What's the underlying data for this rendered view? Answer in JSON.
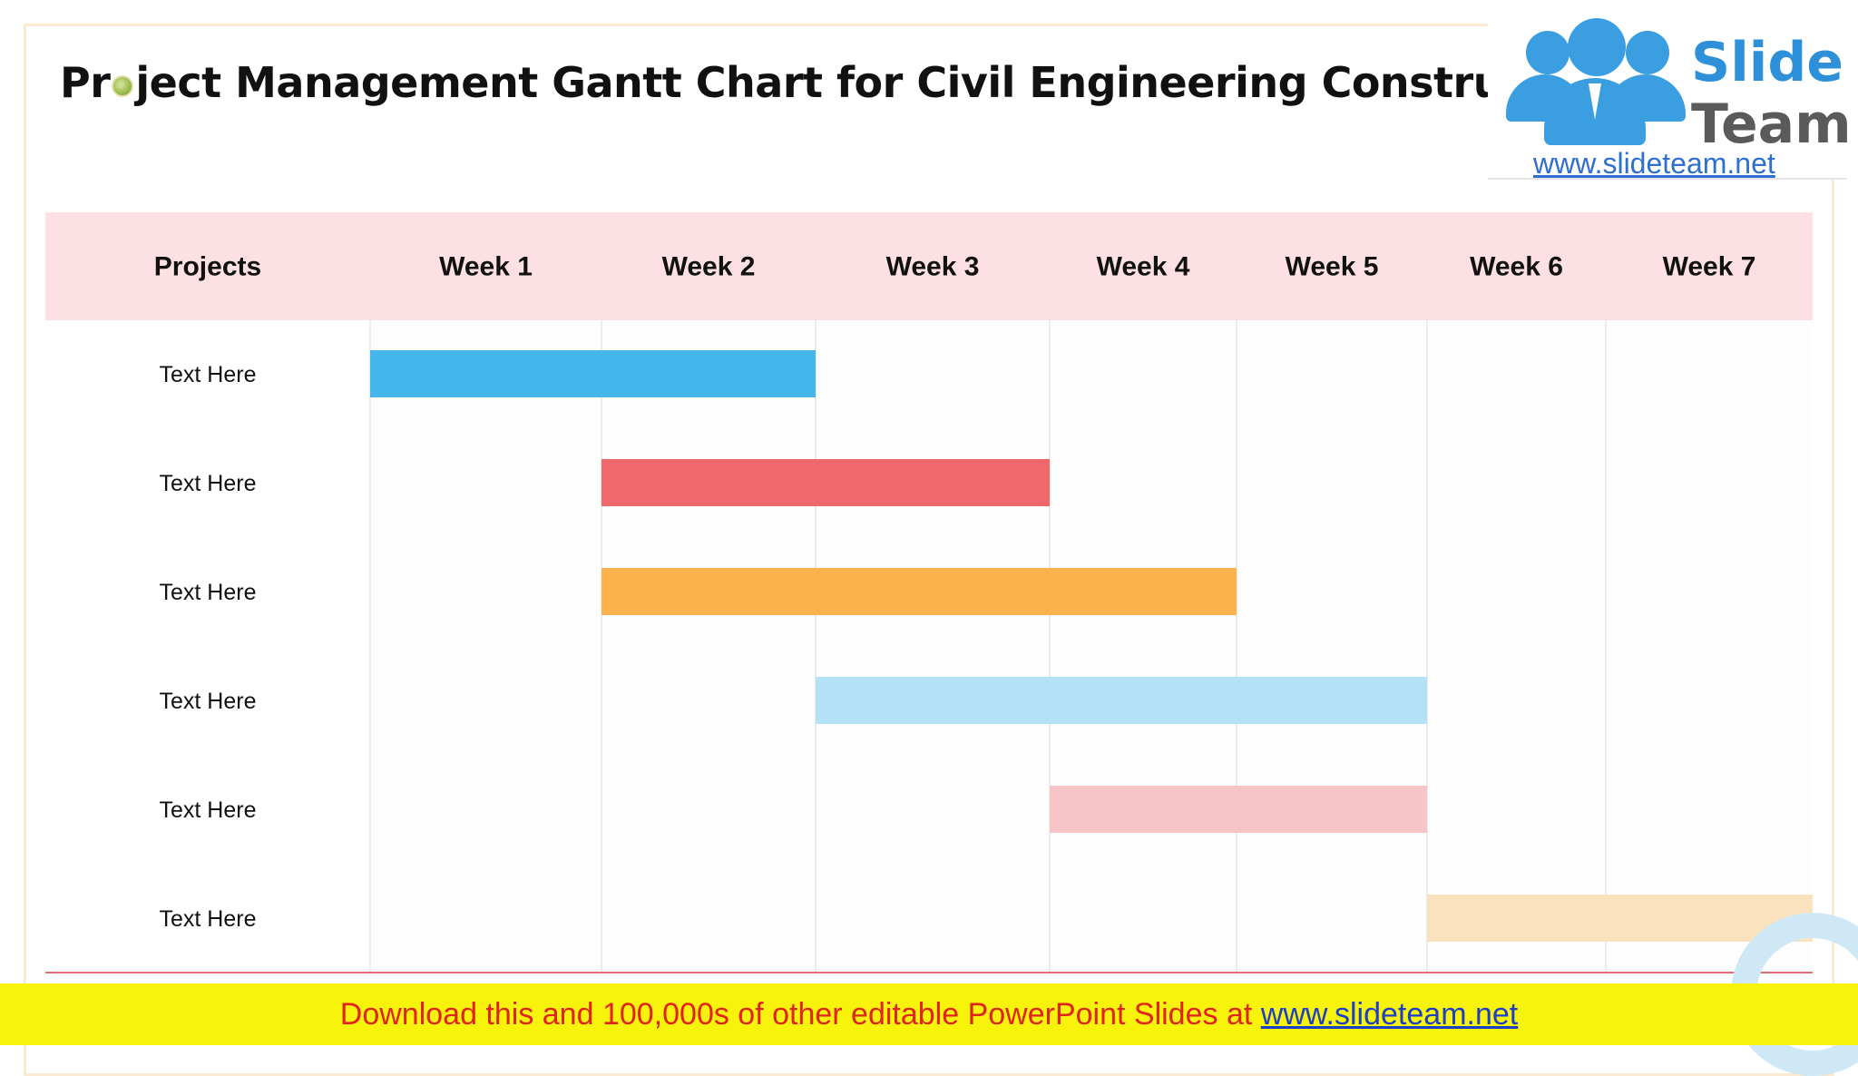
{
  "slide": {
    "title_before": "Pr",
    "title_after": "ject Management Gantt Chart for Civil Engineering Construction Prop",
    "logo": {
      "word1": "Slide",
      "word2": "Team",
      "url": "www.slideteam.net"
    },
    "footer": {
      "text": "Download this and 100,000s of other editable PowerPoint Slides at ",
      "link": "www.slideteam.net"
    }
  },
  "chart_data": {
    "type": "gantt",
    "header_label": "Projects",
    "categories": [
      "Week 1",
      "Week 2",
      "Week 3",
      "Week 4",
      "Week 5",
      "Week 6",
      "Week 7"
    ],
    "tasks": [
      {
        "label": "Text Here",
        "start_week": 1,
        "end_week": 2,
        "color": "#45b7ed"
      },
      {
        "label": "Text Here",
        "start_week": 2,
        "end_week": 3,
        "color": "#f0686b"
      },
      {
        "label": "Text Here",
        "start_week": 2,
        "end_week": 4,
        "color": "#fbb24d"
      },
      {
        "label": "Text Here",
        "start_week": 3,
        "end_week": 5,
        "color": "#b3e1f6"
      },
      {
        "label": "Text Here",
        "start_week": 4,
        "end_week": 5,
        "color": "#f8c5c6"
      },
      {
        "label": "Text Here",
        "start_week": 6,
        "end_week": 7,
        "color": "#fbe2be"
      }
    ],
    "header_color": "#fde0e3",
    "grid": true
  }
}
